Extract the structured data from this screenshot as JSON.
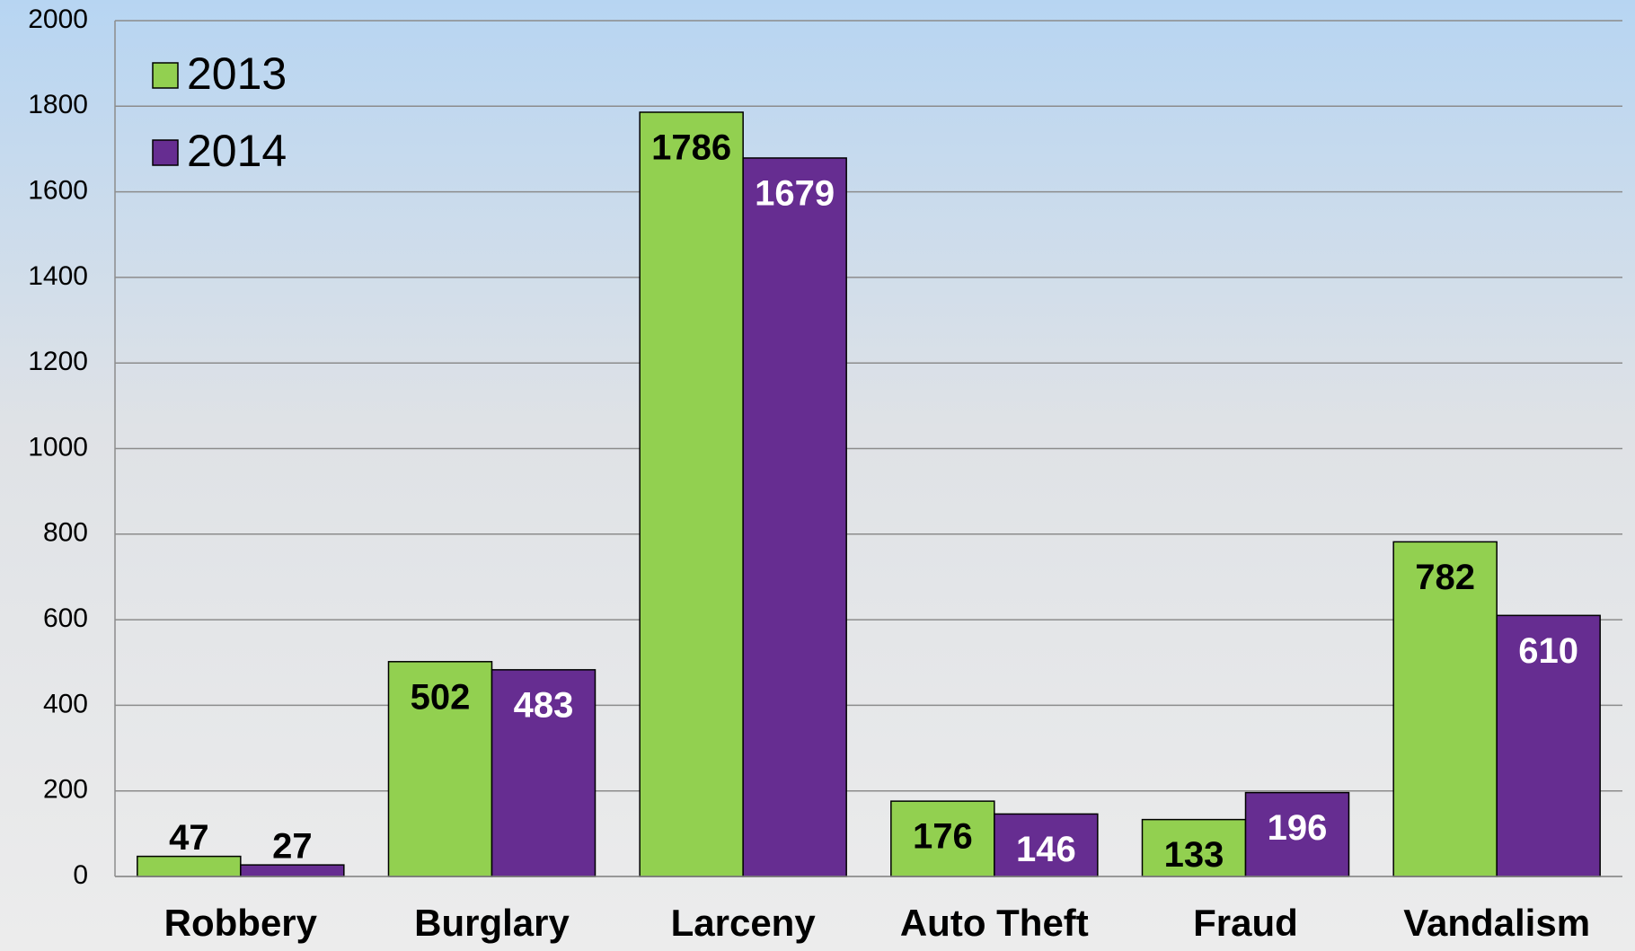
{
  "chart_data": {
    "type": "bar",
    "categories": [
      "Robbery",
      "Burglary",
      "Larceny",
      "Auto Theft",
      "Fraud",
      "Vandalism"
    ],
    "series": [
      {
        "name": "2013",
        "color": "#92d050",
        "label_color": "#000000",
        "values": [
          47,
          502,
          1786,
          176,
          133,
          782
        ]
      },
      {
        "name": "2014",
        "color": "#662d91",
        "label_color": "#ffffff",
        "values": [
          27,
          483,
          1679,
          146,
          196,
          610
        ]
      }
    ],
    "ylim": [
      0,
      2000
    ],
    "yticks": [
      0,
      200,
      400,
      600,
      800,
      1000,
      1200,
      1400,
      1600,
      1800,
      2000
    ],
    "grid": true,
    "legend": "top-left"
  }
}
